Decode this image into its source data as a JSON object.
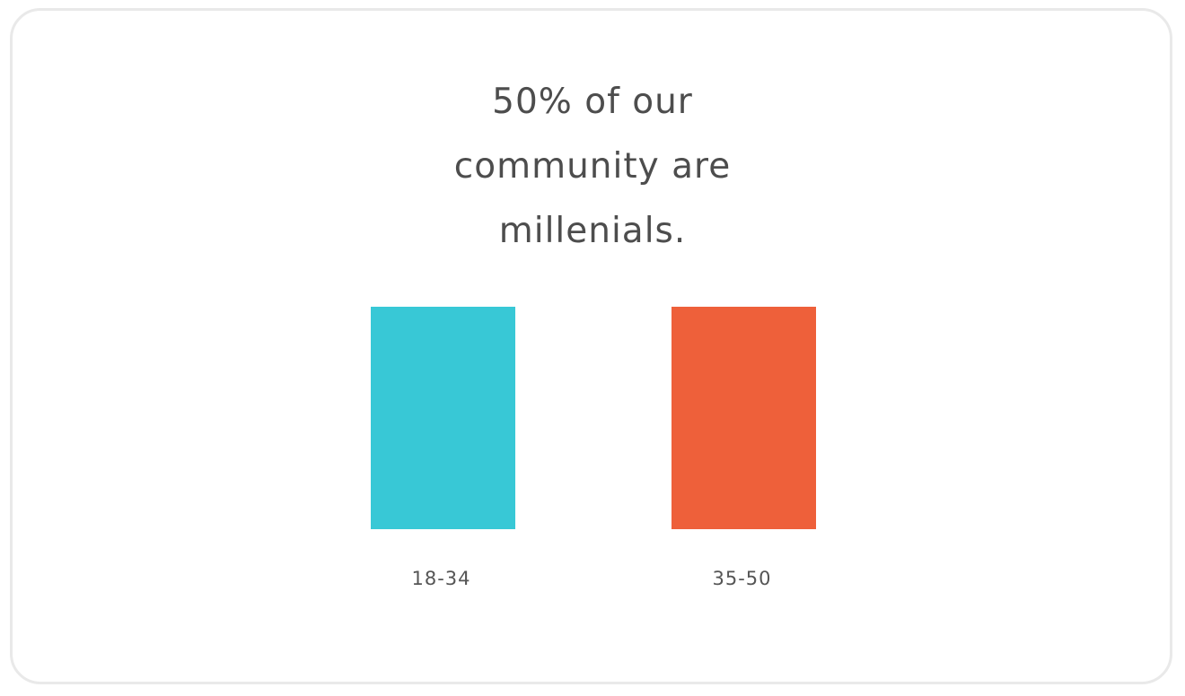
{
  "headline": {
    "line1": "50% of our",
    "line2": "community are",
    "line3": "millenials."
  },
  "chart_data": {
    "type": "bar",
    "title": "50% of our community are millenials.",
    "categories": [
      "18-34",
      "35-50"
    ],
    "values": [
      50,
      50
    ],
    "colors": [
      "#38c8d6",
      "#ee603a"
    ],
    "xlabel": "",
    "ylabel": "",
    "ylim": [
      0,
      50
    ],
    "grid": false,
    "legend": "none"
  }
}
